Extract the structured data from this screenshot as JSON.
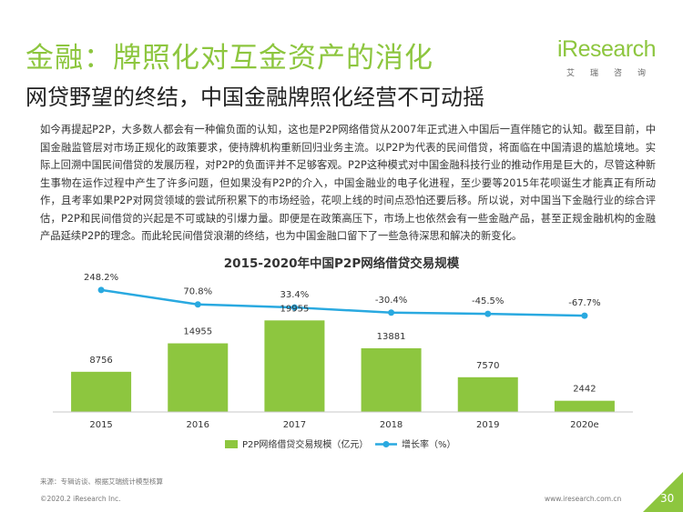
{
  "header": {
    "title": "金融：牌照化对互金资产的消化",
    "subtitle": "网贷野望的终结，中国金融牌照化经营不可动摇"
  },
  "logo": {
    "wordmark": "iResearch",
    "cn": "艾瑞咨询",
    "color": "#8dc63f"
  },
  "body_text": "如今再提起P2P，大多数人都会有一种偏负面的认知，这也是P2P网络借贷从2007年正式进入中国后一直伴随它的认知。截至目前，中国金融监管层对市场正规化的政策要求，使持牌机构重新回归业务主流。以P2P为代表的民间借贷，将面临在中国清退的尴尬境地。实际上回溯中国民间借贷的发展历程，对P2P的负面评并不足够客观。P2P这种模式对中国金融科技行业的推动作用是巨大的，尽管这种新生事物在运作过程中产生了许多问题，但如果没有P2P的介入，中国金融业的电子化进程，至少要等2015年花呗诞生才能真正有所动作，且考率如果P2P对网贷领域的尝试所积累下的市场经验，花呗上线的时间点恐怕还要后移。所以说，对中国当下金融行业的综合评估，P2P和民间借贷的兴起是不可或缺的引爆力量。即便是在政策高压下，市场上也依然会有一些金融产品，甚至正规金融机构的金融产品延续P2P的理念。而此轮民间借贷浪潮的终结，也为中国金融口留下了一些急待深思和解决的新变化。",
  "chart_data": {
    "type": "bar",
    "title": "2015-2020年中国P2P网络借贷交易规模",
    "categories": [
      "2015",
      "2016",
      "2017",
      "2018",
      "2019",
      "2020e"
    ],
    "series": [
      {
        "name": "P2P网络借贷交易规模（亿元）",
        "type": "bar",
        "values": [
          8756,
          14955,
          19955,
          13881,
          7570,
          2442
        ],
        "labels": [
          "8756",
          "14955",
          "19955",
          "13881",
          "7570",
          "2442"
        ],
        "color": "#8dc63f"
      },
      {
        "name": "增长率（%）",
        "type": "line",
        "values": [
          248.2,
          70.8,
          33.4,
          -30.4,
          -45.5,
          -67.7
        ],
        "labels": [
          "248.2%",
          "70.8%",
          "33.4%",
          "-30.4%",
          "-45.5%",
          "-67.7%"
        ],
        "color": "#29a9e0"
      }
    ],
    "ylim": [
      0,
      22000
    ],
    "y2lim": [
      -100,
      280
    ],
    "grid": false,
    "legend": "bottom"
  },
  "footer": {
    "source": "来源：专辑访谈、根据艾瑞统计模型核算",
    "copyright": "©2020.2 iResearch Inc.",
    "website": "www.iresearch.com.cn",
    "page": "30",
    "accent_color": "#8dc63f"
  }
}
